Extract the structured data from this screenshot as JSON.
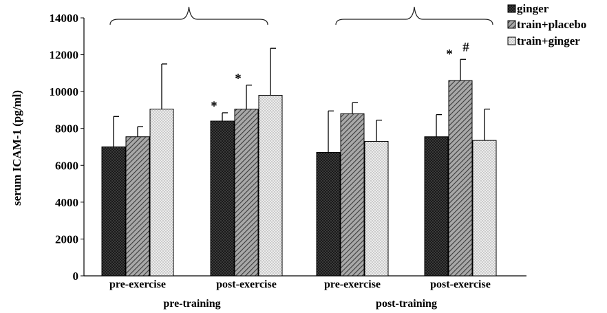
{
  "chart_data": {
    "type": "bar",
    "title": "",
    "ylabel": "serum ICAM-1 (pg/ml)",
    "ylim": [
      0,
      14000
    ],
    "yticks": [
      0,
      2000,
      4000,
      6000,
      8000,
      10000,
      12000,
      14000
    ],
    "grid": false,
    "legend_position": "top-right",
    "groups": [
      {
        "label": "pre-training",
        "categories": [
          "pre-exercise",
          "post-exercise"
        ]
      },
      {
        "label": "post-training",
        "categories": [
          "pre-exercise",
          "post-exercise"
        ]
      }
    ],
    "categories": [
      "pre-exercise",
      "post-exercise",
      "pre-exercise",
      "post-exercise"
    ],
    "series": [
      {
        "name": "ginger",
        "values": [
          7000,
          8400,
          6700,
          7550
        ],
        "errors": [
          1650,
          450,
          2250,
          1200
        ],
        "color": "#1c1c1c",
        "pattern": "dots-dark"
      },
      {
        "name": "train+placebo",
        "values": [
          7550,
          9050,
          8800,
          10600
        ],
        "errors": [
          550,
          1300,
          600,
          1150
        ],
        "color": "#8a8a8a",
        "pattern": "diagonal"
      },
      {
        "name": "train+ginger",
        "values": [
          9050,
          9800,
          7300,
          7350
        ],
        "errors": [
          2450,
          2550,
          1150,
          1700
        ],
        "color": "#d8d8d8",
        "pattern": "dots-light"
      }
    ],
    "annotations": [
      {
        "text": "*",
        "category_index": 1,
        "series_index": 0
      },
      {
        "text": "*",
        "category_index": 1,
        "series_index": 1
      },
      {
        "text": "*",
        "category_index": 3,
        "series_index": 1
      },
      {
        "text": "#",
        "category_index": 3,
        "series_index": 1
      }
    ]
  }
}
